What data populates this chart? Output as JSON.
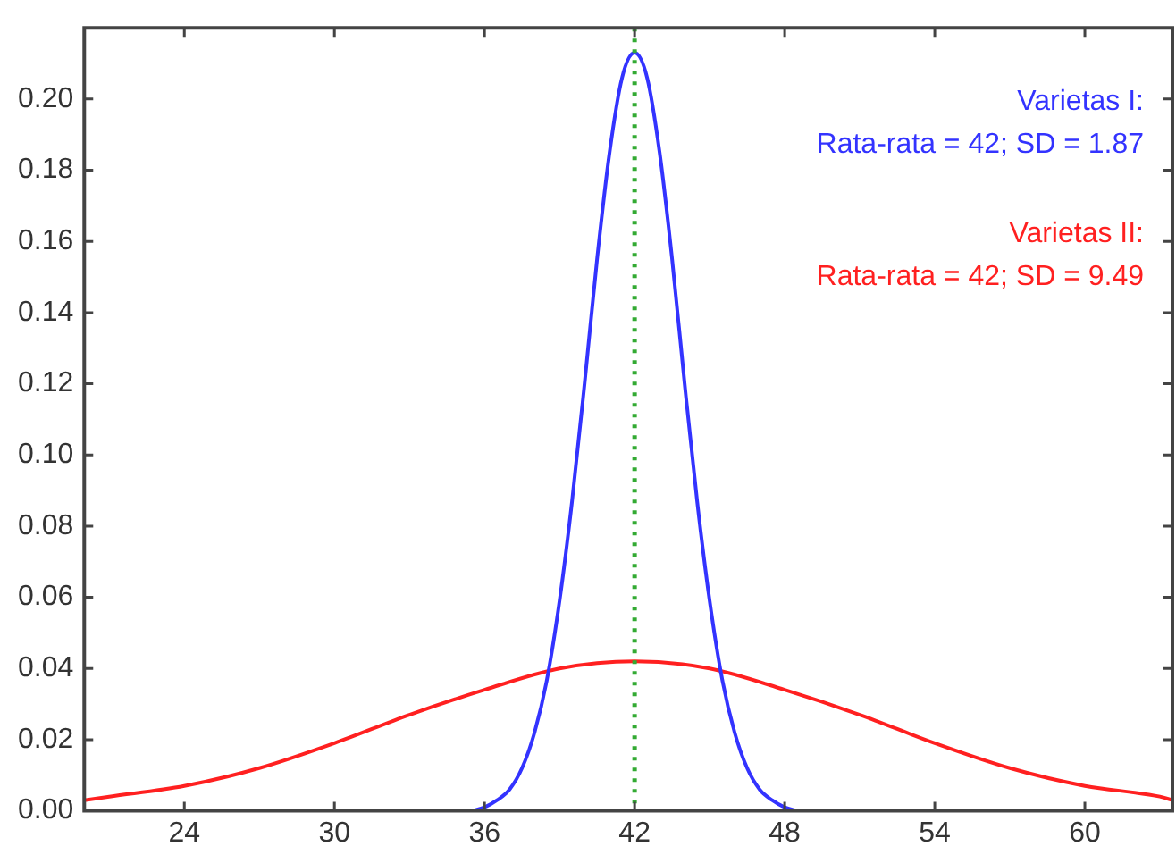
{
  "chart_data": {
    "type": "line",
    "xlim": [
      20,
      63.5
    ],
    "xticks": [
      24,
      30,
      36,
      42,
      48,
      54,
      60
    ],
    "ylim": [
      0,
      0.22
    ],
    "yticks": [
      {
        "value": 0,
        "label": "0.00"
      },
      {
        "value": 0.02,
        "label": "0.02"
      },
      {
        "value": 0.04,
        "label": "0.04"
      },
      {
        "value": 0.06,
        "label": "0.06"
      },
      {
        "value": 0.08,
        "label": "0.08"
      },
      {
        "value": 0.1,
        "label": "0.10"
      },
      {
        "value": 0.12,
        "label": "0.12"
      },
      {
        "value": 0.14,
        "label": "0.14"
      },
      {
        "value": 0.16,
        "label": "0.16"
      },
      {
        "value": 0.18,
        "label": "0.18"
      },
      {
        "value": 0.2,
        "label": "0.20"
      }
    ],
    "grid": false,
    "marker": "none",
    "line_style": "solid",
    "legend": "top right",
    "series": [
      {
        "name": "Varietas I:",
        "color": "#3333ff",
        "x": [
          35.5,
          36,
          36.5,
          37,
          37.5,
          38,
          38.5,
          39,
          39.5,
          40,
          40.5,
          41,
          41.5,
          42,
          42.5,
          43,
          43.5,
          44,
          44.5,
          45,
          45.5,
          46,
          46.5,
          47,
          47.5,
          48,
          48.5
        ],
        "values": [
          0,
          0.001,
          0.003,
          0.006,
          0.012,
          0.022,
          0.037,
          0.059,
          0.087,
          0.12,
          0.155,
          0.185,
          0.206,
          0.213,
          0.206,
          0.185,
          0.155,
          0.12,
          0.087,
          0.059,
          0.037,
          0.022,
          0.012,
          0.006,
          0.003,
          0.001,
          0
        ]
      },
      {
        "name": "Varietas II:",
        "color": "#ff2020",
        "x": [
          20,
          21,
          24,
          27,
          30,
          33,
          36,
          39,
          42,
          45,
          48,
          51,
          54,
          57,
          60,
          63,
          63.5
        ],
        "values": [
          0.003,
          0.004,
          0.007,
          0.012,
          0.019,
          0.027,
          0.034,
          0.04,
          0.042,
          0.04,
          0.034,
          0.027,
          0.019,
          0.012,
          0.007,
          0.004,
          0.003
        ]
      }
    ],
    "annotations": [
      "Rata-rata = 42; SD = 1.87",
      "Rata-rata = 42; SD = 9.49"
    ],
    "ref_lines": [
      {
        "axis": "x",
        "value": 42,
        "color": "#33aa33",
        "line_style": "dotted"
      }
    ]
  }
}
